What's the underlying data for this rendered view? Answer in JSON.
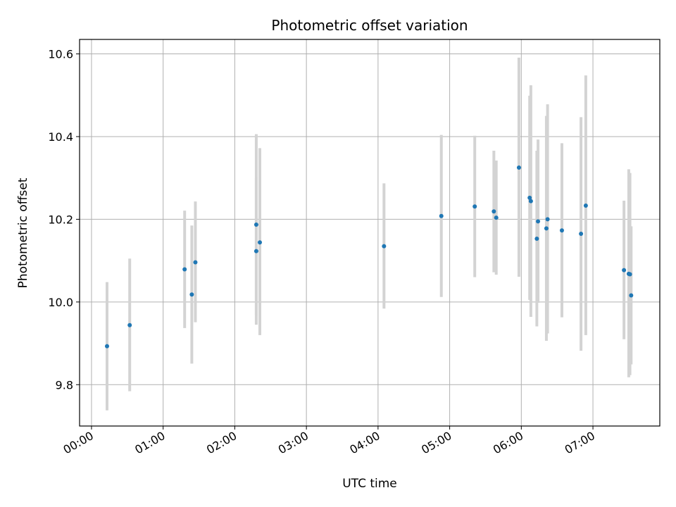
{
  "chart_data": {
    "type": "scatter",
    "title": "Photometric offset variation",
    "xlabel": "UTC time",
    "ylabel": "Photometric offset",
    "grid": true,
    "xlim": [
      "23:50",
      "07:56"
    ],
    "ylim": [
      9.7,
      10.635
    ],
    "x_ticks": [
      "00:00",
      "01:00",
      "02:00",
      "03:00",
      "04:00",
      "05:00",
      "06:00",
      "07:00"
    ],
    "y_ticks": [
      "9.8",
      "10.0",
      "10.2",
      "10.4",
      "10.6"
    ],
    "marker_color": "#1f77b4",
    "errorbar_color": "#d3d3d3",
    "series": [
      {
        "points": [
          {
            "t": "00:13",
            "y": 9.893,
            "lo": 9.738,
            "hi": 10.048
          },
          {
            "t": "00:32",
            "y": 9.944,
            "lo": 9.784,
            "hi": 10.105
          },
          {
            "t": "01:18",
            "y": 10.079,
            "lo": 9.937,
            "hi": 10.221
          },
          {
            "t": "01:24",
            "y": 10.018,
            "lo": 9.851,
            "hi": 10.185
          },
          {
            "t": "01:27",
            "y": 10.096,
            "lo": 9.951,
            "hi": 10.243
          },
          {
            "t": "02:18",
            "y": 10.187,
            "lo": 9.968,
            "hi": 10.406
          },
          {
            "t": "02:18",
            "y": 10.123,
            "lo": 9.945,
            "hi": 10.301
          },
          {
            "t": "02:21",
            "y": 10.144,
            "lo": 9.92,
            "hi": 10.372
          },
          {
            "t": "04:05",
            "y": 10.135,
            "lo": 9.984,
            "hi": 10.287
          },
          {
            "t": "04:53",
            "y": 10.208,
            "lo": 10.012,
            "hi": 10.404
          },
          {
            "t": "05:21",
            "y": 10.231,
            "lo": 10.06,
            "hi": 10.402
          },
          {
            "t": "05:37",
            "y": 10.219,
            "lo": 10.072,
            "hi": 10.366
          },
          {
            "t": "05:39",
            "y": 10.204,
            "lo": 10.066,
            "hi": 10.342
          },
          {
            "t": "05:58",
            "y": 10.325,
            "lo": 10.061,
            "hi": 10.591
          },
          {
            "t": "06:07",
            "y": 10.252,
            "lo": 10.005,
            "hi": 10.499
          },
          {
            "t": "06:08",
            "y": 10.244,
            "lo": 9.964,
            "hi": 10.524
          },
          {
            "t": "06:13",
            "y": 10.153,
            "lo": 9.941,
            "hi": 10.366
          },
          {
            "t": "06:14",
            "y": 10.195,
            "lo": 9.998,
            "hi": 10.393
          },
          {
            "t": "06:21",
            "y": 10.178,
            "lo": 9.906,
            "hi": 10.45
          },
          {
            "t": "06:22",
            "y": 10.2,
            "lo": 9.924,
            "hi": 10.478
          },
          {
            "t": "06:34",
            "y": 10.173,
            "lo": 9.963,
            "hi": 10.384
          },
          {
            "t": "06:50",
            "y": 10.165,
            "lo": 9.882,
            "hi": 10.447
          },
          {
            "t": "06:54",
            "y": 10.233,
            "lo": 9.92,
            "hi": 10.548
          },
          {
            "t": "07:26",
            "y": 10.077,
            "lo": 9.91,
            "hi": 10.245
          },
          {
            "t": "07:30",
            "y": 10.068,
            "lo": 9.818,
            "hi": 10.321
          },
          {
            "t": "07:31",
            "y": 10.067,
            "lo": 9.823,
            "hi": 10.312
          },
          {
            "t": "07:32",
            "y": 10.016,
            "lo": 9.849,
            "hi": 10.183
          }
        ]
      }
    ]
  }
}
